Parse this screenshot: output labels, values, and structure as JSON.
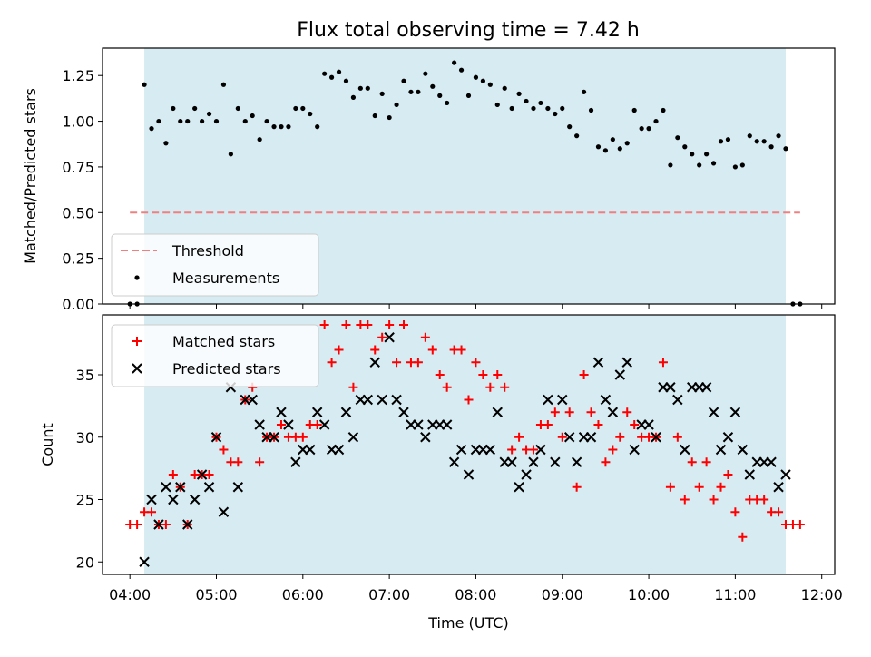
{
  "title": "Flux total observing time = 7.42 h",
  "chart_data": [
    {
      "type": "scatter",
      "ylabel": "Matched/Predicted stars",
      "xlim": [
        "03:41",
        "12:09"
      ],
      "ylim": [
        0,
        1.4
      ],
      "yticks": [
        "0.00",
        "0.25",
        "0.50",
        "0.75",
        "1.00",
        "1.25"
      ],
      "shaded_span": [
        "04:10",
        "11:35"
      ],
      "threshold": {
        "name": "Threshold",
        "value": 0.5,
        "x_range": [
          "04:00",
          "11:45"
        ],
        "color": "#f08080"
      },
      "legend_position": "lower-left",
      "series": [
        {
          "name": "Measurements",
          "x": [
            "04:00",
            "04:05",
            "04:10",
            "04:15",
            "04:20",
            "04:25",
            "04:30",
            "04:35",
            "04:40",
            "04:45",
            "04:50",
            "04:55",
            "05:00",
            "05:05",
            "05:10",
            "05:15",
            "05:20",
            "05:25",
            "05:30",
            "05:35",
            "05:40",
            "05:45",
            "05:50",
            "05:55",
            "06:00",
            "06:05",
            "06:10",
            "06:15",
            "06:20",
            "06:25",
            "06:30",
            "06:35",
            "06:40",
            "06:45",
            "06:50",
            "06:55",
            "07:00",
            "07:05",
            "07:10",
            "07:15",
            "07:20",
            "07:25",
            "07:30",
            "07:35",
            "07:40",
            "07:45",
            "07:50",
            "07:55",
            "08:00",
            "08:05",
            "08:10",
            "08:15",
            "08:20",
            "08:25",
            "08:30",
            "08:35",
            "08:40",
            "08:45",
            "08:50",
            "08:55",
            "09:00",
            "09:05",
            "09:10",
            "09:15",
            "09:20",
            "09:25",
            "09:30",
            "09:35",
            "09:40",
            "09:45",
            "09:50",
            "09:55",
            "10:00",
            "10:05",
            "10:10",
            "10:15",
            "10:20",
            "10:25",
            "10:30",
            "10:35",
            "10:40",
            "10:45",
            "10:50",
            "10:55",
            "11:00",
            "11:05",
            "11:10",
            "11:15",
            "11:20",
            "11:25",
            "11:30",
            "11:35",
            "11:40",
            "11:45"
          ],
          "y": [
            0.0,
            0.0,
            1.2,
            0.96,
            1.0,
            0.88,
            1.07,
            1.0,
            1.0,
            1.07,
            1.0,
            1.04,
            1.0,
            1.2,
            0.82,
            1.07,
            1.0,
            1.03,
            0.9,
            1.0,
            0.97,
            0.97,
            0.97,
            1.07,
            1.07,
            1.04,
            0.97,
            1.26,
            1.24,
            1.27,
            1.22,
            1.13,
            1.18,
            1.18,
            1.03,
            1.15,
            1.02,
            1.09,
            1.22,
            1.16,
            1.16,
            1.26,
            1.19,
            1.14,
            1.1,
            1.32,
            1.28,
            1.14,
            1.24,
            1.22,
            1.2,
            1.09,
            1.18,
            1.07,
            1.15,
            1.11,
            1.07,
            1.1,
            1.07,
            1.04,
            1.07,
            0.97,
            0.92,
            1.16,
            1.06,
            0.86,
            0.84,
            0.9,
            0.85,
            0.88,
            1.06,
            0.96,
            0.96,
            1.0,
            1.06,
            0.76,
            0.91,
            0.86,
            0.82,
            0.76,
            0.82,
            0.77,
            0.89,
            0.9,
            0.75,
            0.76,
            0.92,
            0.89,
            0.89,
            0.86,
            0.92,
            0.85,
            0.0,
            0.0
          ]
        }
      ]
    },
    {
      "type": "scatter",
      "xlabel": "Time (UTC)",
      "ylabel": "Count",
      "xlim": [
        "03:41",
        "12:09"
      ],
      "ylim": [
        19,
        39.8
      ],
      "yticks": [
        "20",
        "25",
        "30",
        "35"
      ],
      "xticks": [
        "04:00",
        "05:00",
        "06:00",
        "07:00",
        "08:00",
        "09:00",
        "10:00",
        "11:00",
        "12:00"
      ],
      "shaded_span": [
        "04:10",
        "11:35"
      ],
      "legend_position": "upper-left",
      "series": [
        {
          "name": "Matched stars",
          "color": "#ff0000",
          "marker": "plus",
          "x": [
            "04:00",
            "04:05",
            "04:10",
            "04:15",
            "04:20",
            "04:25",
            "04:30",
            "04:35",
            "04:40",
            "04:45",
            "04:50",
            "04:55",
            "05:00",
            "05:05",
            "05:10",
            "05:15",
            "05:20",
            "05:25",
            "05:30",
            "05:35",
            "05:40",
            "05:45",
            "05:50",
            "05:55",
            "06:00",
            "06:05",
            "06:10",
            "06:15",
            "06:20",
            "06:25",
            "06:30",
            "06:35",
            "06:40",
            "06:45",
            "06:50",
            "06:55",
            "07:00",
            "07:05",
            "07:10",
            "07:15",
            "07:20",
            "07:25",
            "07:30",
            "07:35",
            "07:40",
            "07:45",
            "07:50",
            "07:55",
            "08:00",
            "08:05",
            "08:10",
            "08:15",
            "08:20",
            "08:25",
            "08:30",
            "08:35",
            "08:40",
            "08:45",
            "08:50",
            "08:55",
            "09:00",
            "09:05",
            "09:10",
            "09:15",
            "09:20",
            "09:25",
            "09:30",
            "09:35",
            "09:40",
            "09:45",
            "09:50",
            "09:55",
            "10:00",
            "10:05",
            "10:10",
            "10:15",
            "10:20",
            "10:25",
            "10:30",
            "10:35",
            "10:40",
            "10:45",
            "10:50",
            "10:55",
            "11:00",
            "11:05",
            "11:10",
            "11:15",
            "11:20",
            "11:25",
            "11:30",
            "11:35",
            "11:40",
            "11:45"
          ],
          "y": [
            23,
            23,
            24,
            24,
            23,
            23,
            27,
            26,
            23,
            27,
            27,
            27,
            30,
            29,
            28,
            28,
            33,
            34,
            28,
            30,
            30,
            31,
            30,
            30,
            30,
            31,
            31,
            39,
            36,
            37,
            39,
            34,
            39,
            39,
            37,
            38,
            39,
            36,
            39,
            36,
            36,
            38,
            37,
            35,
            34,
            37,
            37,
            33,
            36,
            35,
            34,
            35,
            34,
            29,
            30,
            29,
            29,
            31,
            31,
            32,
            30,
            32,
            26,
            35,
            32,
            31,
            28,
            29,
            30,
            32,
            31,
            30,
            30,
            30,
            36,
            26,
            30,
            25,
            28,
            26,
            28,
            25,
            26,
            27,
            24,
            22,
            25,
            25,
            25,
            24,
            24,
            23,
            23,
            23
          ]
        },
        {
          "name": "Predicted stars",
          "color": "#000000",
          "marker": "x",
          "x": [
            "04:10",
            "04:15",
            "04:20",
            "04:25",
            "04:30",
            "04:35",
            "04:40",
            "04:45",
            "04:50",
            "04:55",
            "05:00",
            "05:05",
            "05:10",
            "05:15",
            "05:20",
            "05:25",
            "05:30",
            "05:35",
            "05:40",
            "05:45",
            "05:50",
            "05:55",
            "06:00",
            "06:05",
            "06:10",
            "06:15",
            "06:20",
            "06:25",
            "06:30",
            "06:35",
            "06:40",
            "06:45",
            "06:50",
            "06:55",
            "07:00",
            "07:05",
            "07:10",
            "07:15",
            "07:20",
            "07:25",
            "07:30",
            "07:35",
            "07:40",
            "07:45",
            "07:50",
            "07:55",
            "08:00",
            "08:05",
            "08:10",
            "08:15",
            "08:20",
            "08:25",
            "08:30",
            "08:35",
            "08:40",
            "08:45",
            "08:50",
            "08:55",
            "09:00",
            "09:05",
            "09:10",
            "09:15",
            "09:20",
            "09:25",
            "09:30",
            "09:35",
            "09:40",
            "09:45",
            "09:50",
            "09:55",
            "10:00",
            "10:05",
            "10:10",
            "10:15",
            "10:20",
            "10:25",
            "10:30",
            "10:35",
            "10:40",
            "10:45",
            "10:50",
            "10:55",
            "11:00",
            "11:05",
            "11:10",
            "11:15",
            "11:20",
            "11:25",
            "11:30",
            "11:35"
          ],
          "y": [
            20,
            25,
            23,
            26,
            25,
            26,
            23,
            25,
            27,
            26,
            30,
            24,
            34,
            26,
            33,
            33,
            31,
            30,
            30,
            32,
            31,
            28,
            29,
            29,
            32,
            31,
            29,
            29,
            32,
            30,
            33,
            33,
            36,
            33,
            38,
            33,
            32,
            31,
            31,
            30,
            31,
            31,
            31,
            28,
            29,
            27,
            29,
            29,
            29,
            32,
            28,
            28,
            26,
            27,
            28,
            29,
            33,
            28,
            33,
            30,
            28,
            30,
            30,
            36,
            33,
            32,
            35,
            36,
            29,
            31,
            31,
            30,
            34,
            34,
            33,
            29,
            34,
            34,
            34,
            32,
            29,
            30,
            32,
            29,
            27,
            28,
            28,
            28,
            26,
            27
          ]
        }
      ]
    }
  ]
}
